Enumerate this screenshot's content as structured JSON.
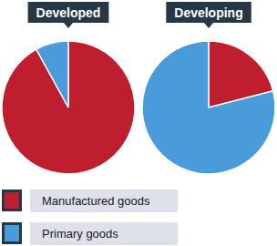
{
  "chart_data": [
    {
      "type": "pie",
      "title": "Developed",
      "categories": [
        "Manufactured goods",
        "Primary goods"
      ],
      "values": [
        92,
        8
      ],
      "colors": [
        "#be1e2d",
        "#4a9bd9"
      ],
      "legend": "bottom-left"
    },
    {
      "type": "pie",
      "title": "Developing",
      "categories": [
        "Manufactured goods",
        "Primary goods"
      ],
      "values": [
        21,
        79
      ],
      "colors": [
        "#be1e2d",
        "#4a9bd9"
      ]
    }
  ]
}
